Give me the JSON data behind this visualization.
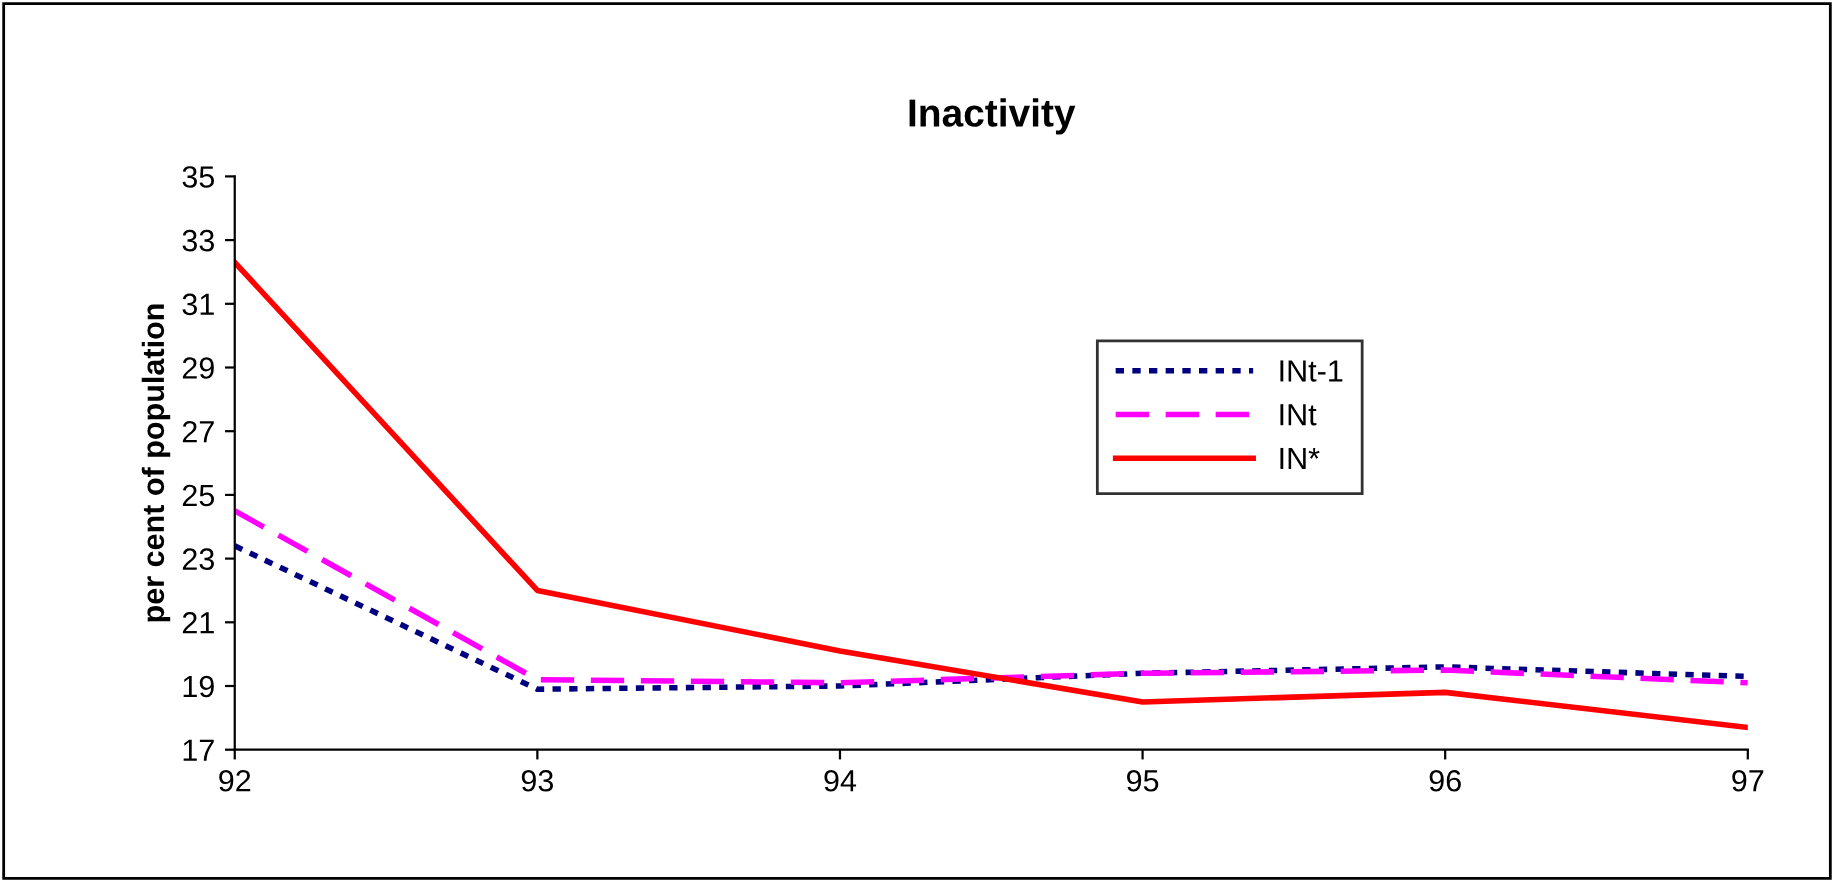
{
  "chart_data": {
    "type": "line",
    "title": "Inactivity",
    "ylabel": "per cent of population",
    "x": [
      92,
      93,
      94,
      95,
      96,
      97
    ],
    "series": [
      {
        "name": "INt-1",
        "color": "#000080",
        "line_style": "dotted",
        "values": [
          23.4,
          18.9,
          19.0,
          19.4,
          19.6,
          19.3
        ]
      },
      {
        "name": "INt",
        "color": "#ff00ff",
        "line_style": "dashed",
        "values": [
          24.5,
          19.2,
          19.1,
          19.4,
          19.5,
          19.1
        ]
      },
      {
        "name": "IN*",
        "color": "#ff0000",
        "line_style": "solid",
        "values": [
          32.3,
          22.0,
          20.1,
          18.5,
          18.8,
          17.7
        ]
      }
    ],
    "xlim": [
      92,
      97
    ],
    "xticks": [
      92,
      93,
      94,
      95,
      96,
      97
    ],
    "ylim": [
      17,
      35
    ],
    "yticks": [
      17,
      19,
      21,
      23,
      25,
      27,
      29,
      31,
      33,
      35
    ],
    "grid": false,
    "legend": "right",
    "marker": "none"
  }
}
